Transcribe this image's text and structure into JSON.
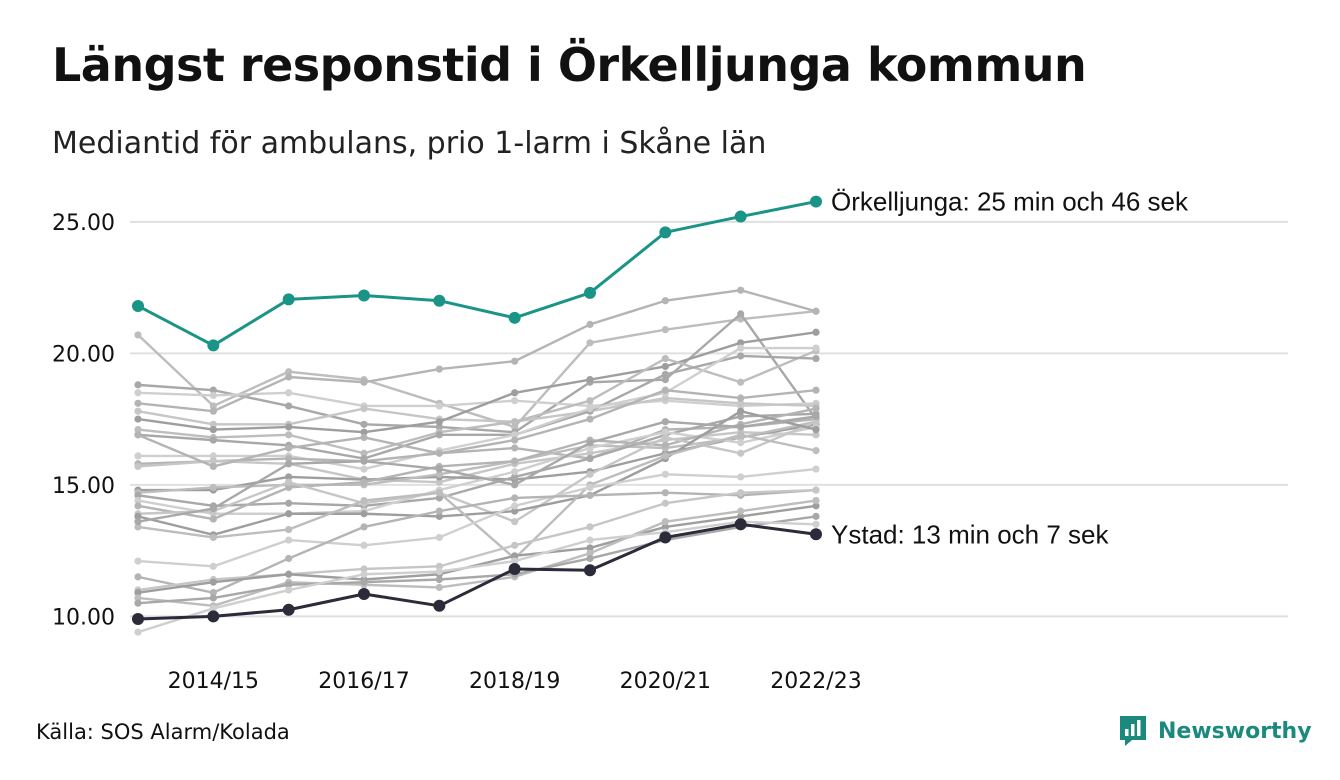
{
  "title": "Längst responstid i Örkelljunga kommun",
  "subtitle": "Mediantid för ambulans, prio 1-larm i Skåne län",
  "source": "Källa: SOS Alarm/Kolada",
  "logo": {
    "text": "Newsworthy",
    "icon": "newsworthy-logo-icon",
    "color": "#1b8a7d"
  },
  "chart_data": {
    "type": "line",
    "title": "",
    "xlabel": "",
    "ylabel": "",
    "x": [
      "2013/14",
      "2014/15",
      "2015/16",
      "2016/17",
      "2017/18",
      "2018/19",
      "2019/20",
      "2020/21",
      "2021/22",
      "2022/23"
    ],
    "x_tick_labels": [
      "2014/15",
      "2016/17",
      "2018/19",
      "2020/21",
      "2022/23"
    ],
    "y_ticks": [
      "10.00",
      "15.00",
      "20.00",
      "25.00"
    ],
    "ylim": [
      9.1,
      26.4
    ],
    "grid": true,
    "highlight_colors": {
      "top": "#1b9488",
      "bottom": "#2b2b3a",
      "others": [
        "#bdbdbd",
        "#a8a8a8",
        "#cfcfcf",
        "#b4b4b4",
        "#c6c6c6",
        "#9e9e9e"
      ]
    },
    "highlighted": [
      {
        "name": "Örkelljunga",
        "label": "Örkelljunga: 25 min och 46 sek",
        "color": "#1b9488",
        "values": [
          21.8,
          20.3,
          22.05,
          22.2,
          22.0,
          21.35,
          22.3,
          24.6,
          25.2,
          25.77
        ]
      },
      {
        "name": "Ystad",
        "label": "Ystad: 13 min och 7 sek",
        "color": "#2b2b3a",
        "values": [
          9.9,
          10.0,
          10.25,
          10.85,
          10.4,
          11.8,
          11.75,
          13.0,
          13.5,
          13.12
        ]
      }
    ],
    "series": [
      {
        "values": [
          20.7,
          18.0,
          19.3,
          19.0,
          18.1,
          17.2,
          20.4,
          20.9,
          21.3,
          21.6
        ]
      },
      {
        "values": [
          18.8,
          18.6,
          18.0,
          17.3,
          17.2,
          17.0,
          18.9,
          19.0,
          21.5,
          17.5
        ]
      },
      {
        "values": [
          18.5,
          18.4,
          18.5,
          18.0,
          18.0,
          18.2,
          18.0,
          18.2,
          18.0,
          18.1
        ]
      },
      {
        "values": [
          18.1,
          17.8,
          19.1,
          18.9,
          19.4,
          19.7,
          21.1,
          22.0,
          22.4,
          21.6
        ]
      },
      {
        "values": [
          17.8,
          17.3,
          17.3,
          17.9,
          17.5,
          17.4,
          17.8,
          18.3,
          18.1,
          18.0
        ]
      },
      {
        "values": [
          17.5,
          17.1,
          17.2,
          17.0,
          17.4,
          18.5,
          19.0,
          19.5,
          20.4,
          20.8
        ]
      },
      {
        "values": [
          17.1,
          16.8,
          16.9,
          16.2,
          17.0,
          17.4,
          18.2,
          19.8,
          18.9,
          20.1
        ]
      },
      {
        "values": [
          16.9,
          16.7,
          16.5,
          16.0,
          16.9,
          16.9,
          17.8,
          19.2,
          19.9,
          19.8
        ]
      },
      {
        "values": [
          16.1,
          16.1,
          16.1,
          15.6,
          16.3,
          16.9,
          17.9,
          18.5,
          20.2,
          20.2
        ]
      },
      {
        "values": [
          15.8,
          15.9,
          16.0,
          15.9,
          16.2,
          16.4,
          16.0,
          17.1,
          17.2,
          17.5
        ]
      },
      {
        "values": [
          15.7,
          15.9,
          15.8,
          15.2,
          15.1,
          15.8,
          16.2,
          16.7,
          17.0,
          16.9
        ]
      },
      {
        "values": [
          14.8,
          14.8,
          15.3,
          15.2,
          15.3,
          15.2,
          15.5,
          16.2,
          16.8,
          17.3
        ]
      },
      {
        "values": [
          14.7,
          14.9,
          15.0,
          15.0,
          15.4,
          15.9,
          16.5,
          16.4,
          16.8,
          17.4
        ]
      },
      {
        "values": [
          14.6,
          14.2,
          14.3,
          14.2,
          14.5,
          15.3,
          16.0,
          16.9,
          17.6,
          17.7
        ]
      },
      {
        "values": [
          14.4,
          13.9,
          13.9,
          14.0,
          14.8,
          15.5,
          16.4,
          17.0,
          16.6,
          17.2
        ]
      },
      {
        "values": [
          14.2,
          13.7,
          14.9,
          15.1,
          15.7,
          15.9,
          16.7,
          16.5,
          17.3,
          17.9
        ]
      },
      {
        "values": [
          13.9,
          14.0,
          15.1,
          14.3,
          14.7,
          13.6,
          15.4,
          16.8,
          16.2,
          17.4
        ]
      },
      {
        "values": [
          13.8,
          13.1,
          13.9,
          13.9,
          13.8,
          14.0,
          14.6,
          16.0,
          17.8,
          17.1
        ]
      },
      {
        "values": [
          13.4,
          13.0,
          13.3,
          14.4,
          14.7,
          12.2,
          15.0,
          16.1,
          16.9,
          16.3
        ]
      },
      {
        "values": [
          13.6,
          14.1,
          15.8,
          15.9,
          15.6,
          15.0,
          16.6,
          17.4,
          17.2,
          17.6
        ]
      },
      {
        "values": [
          12.1,
          11.9,
          12.9,
          12.7,
          13.0,
          14.2,
          14.9,
          15.4,
          15.3,
          15.6
        ]
      },
      {
        "values": [
          11.5,
          10.9,
          12.2,
          13.4,
          14.0,
          14.5,
          14.6,
          14.7,
          14.6,
          14.8
        ]
      },
      {
        "values": [
          11.0,
          11.4,
          11.6,
          11.8,
          11.9,
          12.7,
          13.4,
          14.3,
          14.7,
          14.8
        ]
      },
      {
        "values": [
          10.9,
          11.3,
          11.6,
          11.4,
          11.6,
          12.3,
          12.6,
          13.4,
          13.8,
          14.2
        ]
      },
      {
        "values": [
          10.7,
          10.4,
          11.3,
          11.2,
          11.1,
          11.5,
          12.4,
          13.6,
          14.0,
          14.4
        ]
      },
      {
        "values": [
          10.5,
          10.7,
          11.2,
          11.3,
          11.4,
          11.6,
          12.2,
          12.9,
          13.4,
          13.8
        ]
      },
      {
        "values": [
          9.4,
          10.3,
          11.0,
          11.6,
          11.7,
          12.1,
          12.9,
          13.2,
          13.6,
          13.5
        ]
      },
      {
        "values": [
          16.9,
          15.7,
          16.4,
          16.8,
          16.2,
          16.7,
          17.5,
          18.6,
          18.3,
          18.6
        ]
      }
    ]
  }
}
